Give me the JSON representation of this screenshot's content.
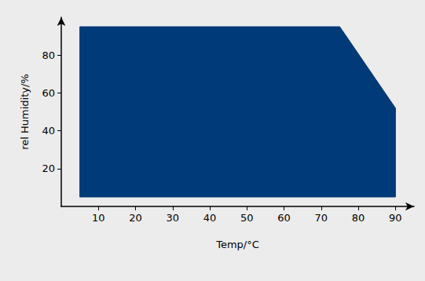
{
  "chart_data": {
    "type": "area",
    "x_label": "Temp/°C",
    "y_label": "rel Humidity/%",
    "x": [
      5,
      5,
      75,
      90,
      90
    ],
    "values": [
      5,
      95,
      95,
      52,
      5
    ],
    "color": "#003a78",
    "xlim": [
      0,
      95
    ],
    "xticks": [
      10,
      20,
      30,
      40,
      50,
      60,
      70,
      80,
      90
    ],
    "ylim": [
      0,
      100
    ],
    "yticks": [
      20,
      40,
      60,
      80
    ],
    "grid": false
  }
}
